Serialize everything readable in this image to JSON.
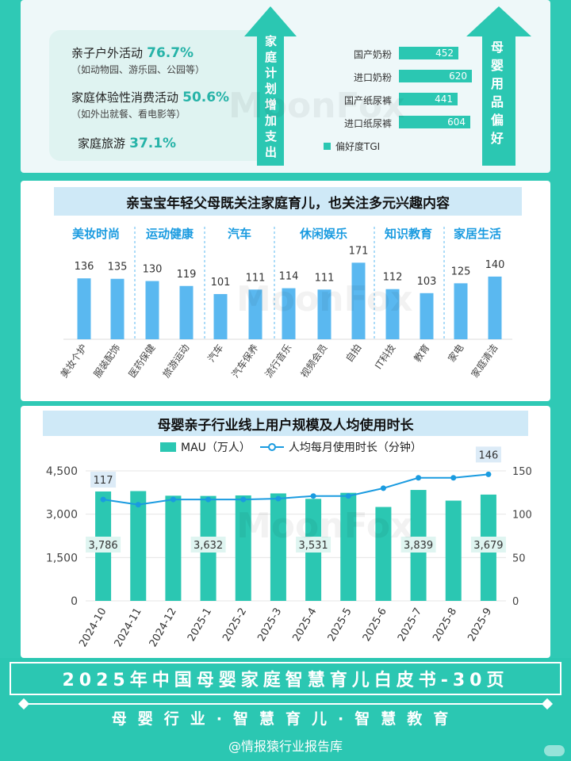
{
  "top_left": {
    "items": [
      {
        "label": "亲子户外活动",
        "value": "76.7%",
        "note": "（如动物园、游乐园、公园等）"
      },
      {
        "label": "家庭体验性消费活动",
        "value": "50.6%",
        "note": "（如外出就餐、看电影等）"
      },
      {
        "label": "家庭旅游",
        "value": "37.1%",
        "note": ""
      }
    ],
    "arrow_text": "家庭计划增加支出"
  },
  "top_right": {
    "arrow_text": "母婴用品偏好",
    "legend": "偏好度TGI",
    "bars": [
      {
        "label": "国产奶粉",
        "value": 452
      },
      {
        "label": "进口奶粉",
        "value": 620
      },
      {
        "label": "国产纸尿裤",
        "value": 441
      },
      {
        "label": "进口纸尿裤",
        "value": 604
      }
    ]
  },
  "mid_title": "亲宝宝年轻父母既关注家庭育儿，也关注多元兴趣内容",
  "watermark": "MoonFox",
  "chart_data": [
    {
      "type": "bar",
      "groups": [
        "美妆时尚",
        "运动健康",
        "汽车",
        "休闲娱乐",
        "知识教育",
        "家居生活"
      ],
      "categories": [
        "美妆个护",
        "服装配饰",
        "医药保健",
        "旅游运动",
        "汽车",
        "汽车保养",
        "流行音乐",
        "视频会员",
        "自拍",
        "IT科技",
        "教育",
        "家电",
        "家庭清洁"
      ],
      "values": [
        136,
        135,
        130,
        119,
        101,
        111,
        114,
        111,
        171,
        112,
        103,
        125,
        140
      ],
      "color": "#5ab8f0"
    },
    {
      "type": "bar",
      "title": "母婴亲子行业线上用户规模及人均使用时长",
      "categories": [
        "2024-10",
        "2024-11",
        "2024-12",
        "2025-1",
        "2025-2",
        "2025-3",
        "2025-4",
        "2025-5",
        "2025-6",
        "2025-7",
        "2025-8",
        "2025-9"
      ],
      "series": [
        {
          "name": "MAU（万人）",
          "type": "bar",
          "axis": "left",
          "values": [
            3786,
            3800,
            3640,
            3632,
            3650,
            3720,
            3531,
            3740,
            3250,
            3839,
            3470,
            3679
          ],
          "color": "#2bc7b2"
        },
        {
          "name": "人均每月使用时长（分钟）",
          "type": "line",
          "axis": "right",
          "values": [
            117,
            111,
            117,
            117,
            117,
            118,
            121,
            121,
            130,
            142,
            142,
            146
          ],
          "color": "#1a9be0"
        }
      ],
      "left_ticks": [
        "0",
        "1,500",
        "3,000",
        "4,500"
      ],
      "right_ticks": [
        "0",
        "50",
        "100",
        "150"
      ],
      "ylim_left": [
        0,
        4500
      ],
      "ylim_right": [
        0,
        150
      ],
      "bar_labels": {
        "0": "3,786",
        "3": "3,632",
        "6": "3,531",
        "9": "3,839",
        "11": "3,679"
      },
      "line_labels": {
        "0": "117",
        "11": "146"
      }
    }
  ],
  "footer": {
    "line1": "2025年中国母婴家庭智慧育儿白皮书-30页",
    "line2": "母婴行业·智慧育儿·智慧教育",
    "line3": "@情报猿行业报告库"
  },
  "colors": {
    "teal": "#2bc7b2",
    "blue": "#5ab8f0",
    "line": "#1a9be0",
    "accent_text": "#27b3a8"
  }
}
